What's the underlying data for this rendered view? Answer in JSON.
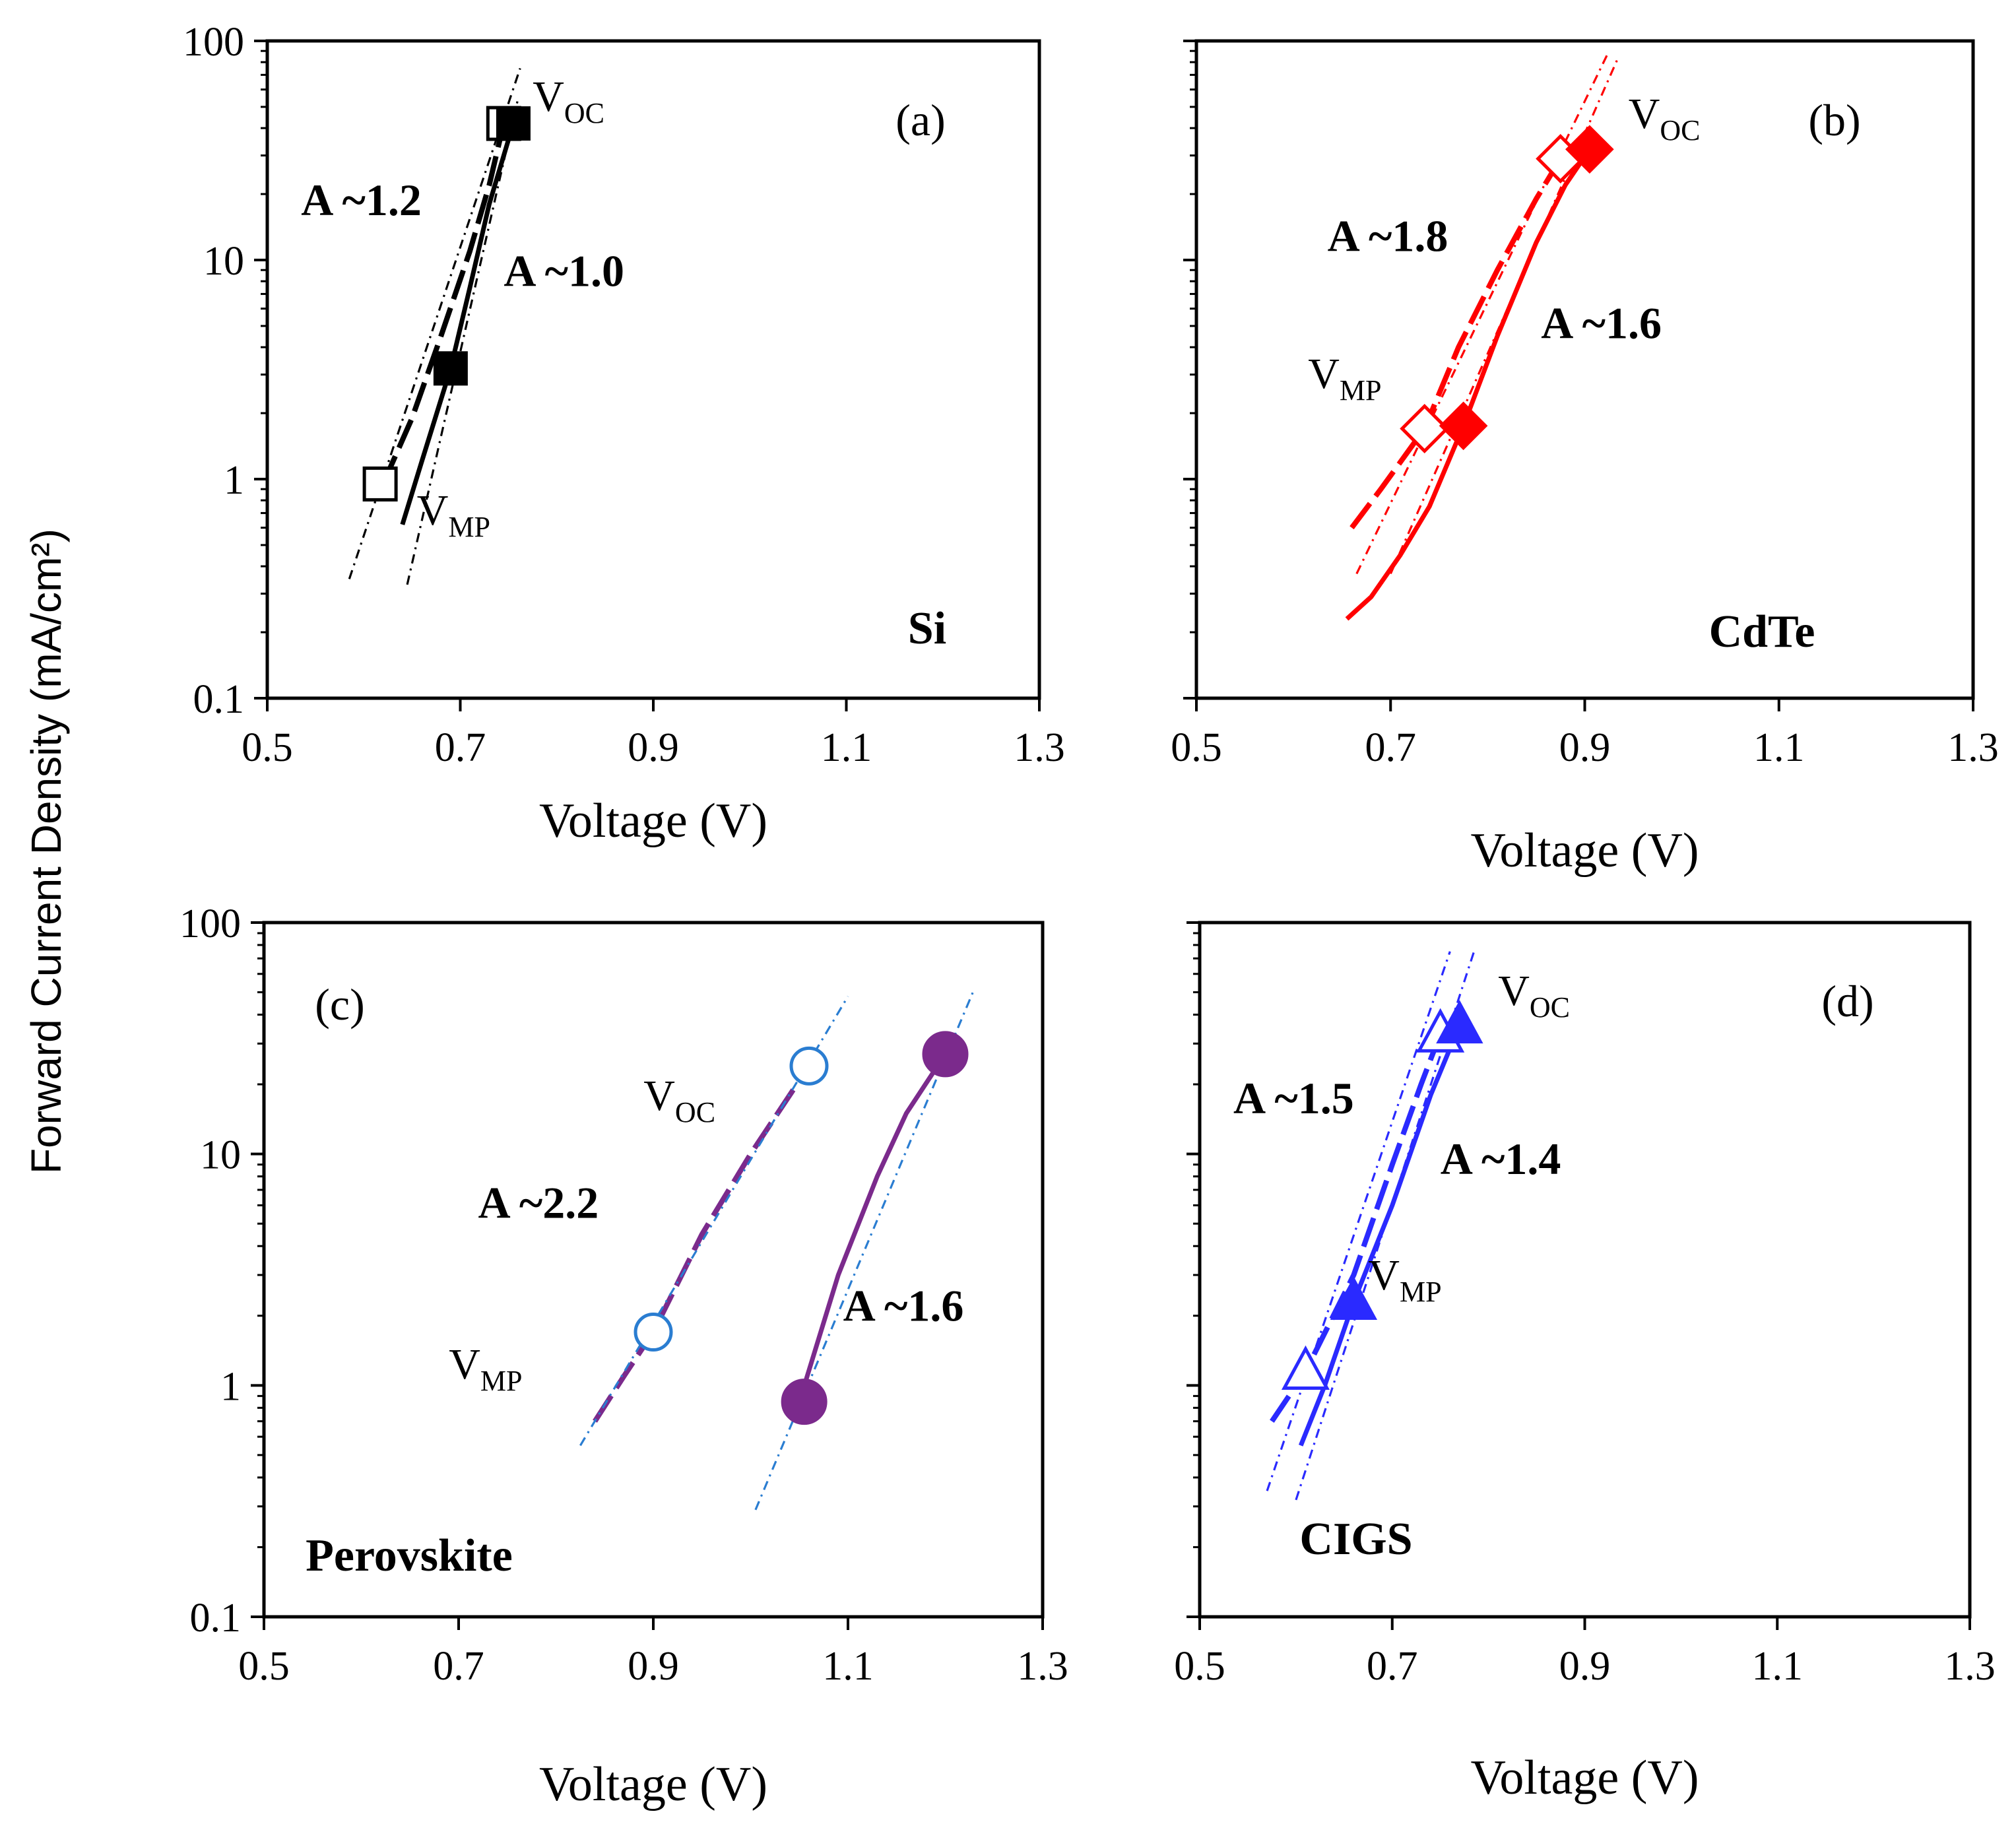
{
  "y_axis_label": "Forward Current Density (mA/cm²)",
  "colors": {
    "Si": "#000000",
    "CdTe": "#ff0000",
    "Perovskite_fill": "#7b2a8c",
    "Perovskite_open": "#2a7dd1",
    "CIGS": "#2a2aff"
  },
  "chart_data": [
    {
      "type": "line",
      "panel": "(a)",
      "material": "Si",
      "xlabel": "Voltage (V)",
      "ylog": true,
      "xlim": [
        0.5,
        1.3
      ],
      "ylim": [
        0.1,
        100
      ],
      "xticks": [
        "0.5",
        "0.7",
        "0.9",
        "1.1",
        "1.3"
      ],
      "yticks": [
        "0.1",
        "1",
        "10",
        "100"
      ],
      "series": [
        {
          "style": "dashed",
          "marker": "open-square",
          "color": "#000000",
          "points": [
            [
              0.62,
              0.95
            ],
            [
              0.65,
              1.9
            ],
            [
              0.68,
              4.5
            ],
            [
              0.71,
              11
            ],
            [
              0.73,
              22
            ],
            [
              0.745,
              42
            ]
          ]
        },
        {
          "style": "solid",
          "marker": "filled-square",
          "color": "#000000",
          "points": [
            [
              0.64,
              0.62
            ],
            [
              0.66,
              1.2
            ],
            [
              0.69,
              3.2
            ],
            [
              0.71,
              7.5
            ],
            [
              0.73,
              18
            ],
            [
              0.755,
              42
            ]
          ]
        },
        {
          "style": "dashdot-fit",
          "color": "#000000",
          "points": [
            [
              0.585,
              0.35
            ],
            [
              0.762,
              75
            ]
          ]
        },
        {
          "style": "dashdot-fit",
          "color": "#000000",
          "points": [
            [
              0.645,
              0.33
            ],
            [
              0.76,
              55
            ]
          ]
        }
      ],
      "markers": [
        {
          "shape": "open-square",
          "x": 0.617,
          "y": 0.95,
          "color": "#000000"
        },
        {
          "shape": "open-square",
          "x": 0.745,
          "y": 42,
          "color": "#000000"
        },
        {
          "shape": "filled-square",
          "x": 0.69,
          "y": 3.2,
          "color": "#000000"
        },
        {
          "shape": "filled-square",
          "x": 0.755,
          "y": 42,
          "color": "#000000"
        }
      ],
      "labels": [
        {
          "kind": "v",
          "main": "V",
          "sub": "OC",
          "x": 0.775,
          "y": 48
        },
        {
          "kind": "v",
          "main": "V",
          "sub": "MP",
          "x": 0.655,
          "y": 0.62
        },
        {
          "kind": "bold",
          "text": "A ~1.2",
          "x": 0.535,
          "y": 16
        },
        {
          "kind": "bold",
          "text": "A ~1.0",
          "x": 0.745,
          "y": 7.6
        }
      ]
    },
    {
      "type": "line",
      "panel": "(b)",
      "material": "CdTe",
      "xlabel": "Voltage (V)",
      "ylog": true,
      "xlim": [
        0.5,
        1.3
      ],
      "ylim": [
        0.1,
        100
      ],
      "xticks": [
        "0.5",
        "0.7",
        "0.9",
        "1.1",
        "1.3"
      ],
      "yticks": [],
      "series": [
        {
          "style": "dashed",
          "marker": "open-diamond",
          "color": "#ff0000",
          "points": [
            [
              0.66,
              0.6
            ],
            [
              0.69,
              0.9
            ],
            [
              0.735,
              1.7
            ],
            [
              0.77,
              4
            ],
            [
              0.81,
              9
            ],
            [
              0.85,
              19
            ],
            [
              0.875,
              29
            ]
          ]
        },
        {
          "style": "solid",
          "marker": "filled-diamond",
          "color": "#ff0000",
          "points": [
            [
              0.655,
              0.23
            ],
            [
              0.68,
              0.29
            ],
            [
              0.71,
              0.45
            ],
            [
              0.74,
              0.75
            ],
            [
              0.775,
              1.75
            ],
            [
              0.81,
              4.5
            ],
            [
              0.85,
              12
            ],
            [
              0.88,
              22
            ],
            [
              0.905,
              32
            ]
          ]
        },
        {
          "style": "dashdot-fit",
          "color": "#ff0000",
          "points": [
            [
              0.665,
              0.37
            ],
            [
              0.925,
              90
            ]
          ]
        },
        {
          "style": "dashdot-fit",
          "color": "#ff0000",
          "points": [
            [
              0.7,
              0.37
            ],
            [
              0.935,
              85
            ]
          ]
        }
      ],
      "markers": [
        {
          "shape": "open-diamond",
          "x": 0.735,
          "y": 1.7,
          "color": "#ff0000"
        },
        {
          "shape": "open-diamond",
          "x": 0.875,
          "y": 29,
          "color": "#ff0000"
        },
        {
          "shape": "filled-diamond",
          "x": 0.775,
          "y": 1.75,
          "color": "#ff0000"
        },
        {
          "shape": "filled-diamond",
          "x": 0.905,
          "y": 32,
          "color": "#ff0000"
        }
      ],
      "labels": [
        {
          "kind": "v",
          "main": "V",
          "sub": "OC",
          "x": 0.945,
          "y": 40
        },
        {
          "kind": "v",
          "main": "V",
          "sub": "MP",
          "x": 0.615,
          "y": 2.6
        },
        {
          "kind": "bold",
          "text": "A ~1.8",
          "x": 0.635,
          "y": 11
        },
        {
          "kind": "bold",
          "text": "A ~1.6",
          "x": 0.855,
          "y": 4.4
        }
      ]
    },
    {
      "type": "line",
      "panel": "(c)",
      "material": "Perovskite",
      "xlabel": "Voltage (V)",
      "ylog": true,
      "xlim": [
        0.5,
        1.3
      ],
      "ylim": [
        0.1,
        100
      ],
      "xticks": [
        "0.5",
        "0.7",
        "0.9",
        "1.1",
        "1.3"
      ],
      "yticks": [
        "0.1",
        "1",
        "10",
        "100"
      ],
      "series": [
        {
          "style": "dashed",
          "marker": "open-circle",
          "color": "#7b2a8c",
          "points": [
            [
              0.84,
              0.7
            ],
            [
              0.87,
              1.1
            ],
            [
              0.9,
              1.7
            ],
            [
              0.95,
              4.5
            ],
            [
              1.0,
              10
            ],
            [
              1.06,
              24
            ]
          ]
        },
        {
          "style": "solid",
          "marker": "filled-circle",
          "color": "#7b2a8c",
          "points": [
            [
              1.05,
              0.85
            ],
            [
              1.09,
              3
            ],
            [
              1.13,
              8
            ],
            [
              1.16,
              15
            ],
            [
              1.2,
              27
            ]
          ]
        },
        {
          "style": "dashdot-fit",
          "color": "#2a7dd1",
          "points": [
            [
              0.825,
              0.55
            ],
            [
              1.1,
              48
            ]
          ]
        },
        {
          "style": "dashdot-fit",
          "color": "#2a7dd1",
          "points": [
            [
              1.005,
              0.29
            ],
            [
              1.23,
              52
            ]
          ]
        }
      ],
      "markers": [
        {
          "shape": "open-circle",
          "x": 0.9,
          "y": 1.7,
          "color": "#2a7dd1"
        },
        {
          "shape": "open-circle",
          "x": 1.06,
          "y": 24,
          "color": "#2a7dd1"
        },
        {
          "shape": "filled-circle",
          "x": 1.055,
          "y": 0.85,
          "color": "#7b2a8c"
        },
        {
          "shape": "filled-circle",
          "x": 1.2,
          "y": 27,
          "color": "#7b2a8c"
        }
      ],
      "labels": [
        {
          "kind": "v",
          "main": "V",
          "sub": "OC",
          "x": 0.89,
          "y": 15.5
        },
        {
          "kind": "v",
          "main": "V",
          "sub": "MP",
          "x": 0.69,
          "y": 1.07
        },
        {
          "kind": "bold",
          "text": "A ~2.2",
          "x": 0.72,
          "y": 5.3
        },
        {
          "kind": "bold",
          "text": "A ~1.6",
          "x": 1.095,
          "y": 1.9
        }
      ]
    },
    {
      "type": "line",
      "panel": "(d)",
      "material": "CIGS",
      "xlabel": "Voltage (V)",
      "ylog": true,
      "xlim": [
        0.5,
        1.3
      ],
      "ylim": [
        0.1,
        100
      ],
      "xticks": [
        "0.5",
        "0.7",
        "0.9",
        "1.1",
        "1.3"
      ],
      "yticks": [],
      "series": [
        {
          "style": "dashed",
          "marker": "open-triangle",
          "color": "#2a2aff",
          "points": [
            [
              0.575,
              0.7
            ],
            [
              0.61,
              1.15
            ],
            [
              0.66,
              3
            ],
            [
              0.7,
              9
            ],
            [
              0.73,
              20
            ],
            [
              0.75,
              33
            ]
          ]
        },
        {
          "style": "solid",
          "marker": "filled-triangle",
          "color": "#2a2aff",
          "points": [
            [
              0.605,
              0.55
            ],
            [
              0.63,
              1.0
            ],
            [
              0.66,
              2.3
            ],
            [
              0.7,
              6
            ],
            [
              0.74,
              18
            ],
            [
              0.77,
              36
            ]
          ]
        },
        {
          "style": "dashdot-fit",
          "color": "#2a2aff",
          "points": [
            [
              0.57,
              0.35
            ],
            [
              0.76,
              75
            ]
          ]
        },
        {
          "style": "dashdot-fit",
          "color": "#2a2aff",
          "points": [
            [
              0.6,
              0.32
            ],
            [
              0.785,
              75
            ]
          ]
        }
      ],
      "markers": [
        {
          "shape": "open-triangle",
          "x": 0.61,
          "y": 1.15,
          "color": "#2a2aff"
        },
        {
          "shape": "open-triangle",
          "x": 0.75,
          "y": 33,
          "color": "#2a2aff"
        },
        {
          "shape": "filled-triangle",
          "x": 0.66,
          "y": 2.3,
          "color": "#2a2aff"
        },
        {
          "shape": "filled-triangle",
          "x": 0.77,
          "y": 36,
          "color": "#2a2aff"
        }
      ],
      "labels": [
        {
          "kind": "v",
          "main": "V",
          "sub": "OC",
          "x": 0.81,
          "y": 44
        },
        {
          "kind": "v",
          "main": "V",
          "sub": "MP",
          "x": 0.675,
          "y": 2.6
        },
        {
          "kind": "bold",
          "text": "A ~1.5",
          "x": 0.535,
          "y": 15
        },
        {
          "kind": "bold",
          "text": "A ~1.4",
          "x": 0.75,
          "y": 8.2
        }
      ]
    }
  ]
}
